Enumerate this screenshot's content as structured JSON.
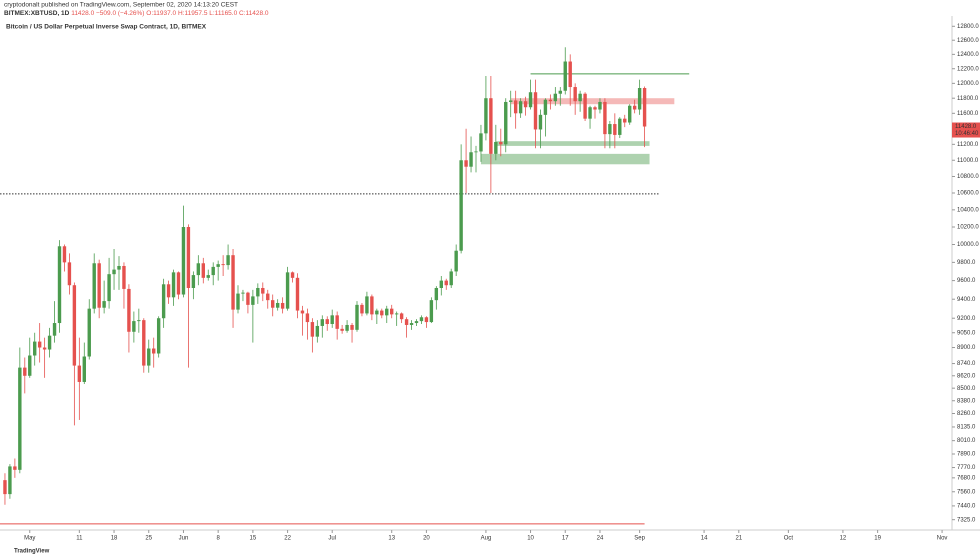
{
  "header": {
    "publisher": "cryptodonalt published on TradingView.com, September 02, 2020 14:13:20 CEST",
    "symbol": "BITMEX:XBTUSD, 1D",
    "last": "11428.0",
    "change": "−509.0 (−4.26%)",
    "ohlc": "O:11937.0 H:11957.5 L:11165.0 C:11428.0"
  },
  "footer": {
    "logo": "TradingView"
  },
  "chart_data": {
    "type": "candlestick",
    "title": "Bitcoin / US Dollar Perpetual Inverse Swap Contract, 1D, BITMEX",
    "log_scale": true,
    "up_color": "#4b9b4e",
    "down_color": "#e5514e",
    "last_price_label": "11428.0",
    "countdown": "10:46:40",
    "xlim": [
      "2020-04-25",
      "2020-11-03"
    ],
    "xticks": [
      {
        "value": "2020-05-01",
        "label": "May"
      },
      {
        "value": "2020-05-11",
        "label": "11"
      },
      {
        "value": "2020-05-18",
        "label": "18"
      },
      {
        "value": "2020-05-25",
        "label": "25"
      },
      {
        "value": "2020-06-01",
        "label": "Jun"
      },
      {
        "value": "2020-06-08",
        "label": "8"
      },
      {
        "value": "2020-06-15",
        "label": "15"
      },
      {
        "value": "2020-06-22",
        "label": "22"
      },
      {
        "value": "2020-07-01",
        "label": "Jul"
      },
      {
        "value": "2020-07-13",
        "label": "13"
      },
      {
        "value": "2020-07-20",
        "label": "20"
      },
      {
        "value": "2020-08-01",
        "label": "Aug"
      },
      {
        "value": "2020-08-10",
        "label": "10"
      },
      {
        "value": "2020-08-17",
        "label": "17"
      },
      {
        "value": "2020-08-24",
        "label": "24"
      },
      {
        "value": "2020-09-01",
        "label": "Sep"
      },
      {
        "value": "2020-09-14",
        "label": "14"
      },
      {
        "value": "2020-09-21",
        "label": "21"
      },
      {
        "value": "2020-10-01",
        "label": "Oct"
      },
      {
        "value": "2020-10-12",
        "label": "12"
      },
      {
        "value": "2020-10-19",
        "label": "19"
      },
      {
        "value": "2020-11-01",
        "label": "Nov"
      }
    ],
    "ylim": [
      7240,
      12950
    ],
    "yticks": [
      {
        "value": 7325,
        "label": "7325.0"
      },
      {
        "value": 7440,
        "label": "7440.0"
      },
      {
        "value": 7560,
        "label": "7560.0"
      },
      {
        "value": 7680,
        "label": "7680.0"
      },
      {
        "value": 7770,
        "label": "7770.0"
      },
      {
        "value": 7890,
        "label": "7890.0"
      },
      {
        "value": 8010,
        "label": "8010.0"
      },
      {
        "value": 8135,
        "label": "8135.0"
      },
      {
        "value": 8260,
        "label": "8260.0"
      },
      {
        "value": 8380,
        "label": "8380.0"
      },
      {
        "value": 8500,
        "label": "8500.0"
      },
      {
        "value": 8620,
        "label": "8620.0"
      },
      {
        "value": 8740,
        "label": "8740.0"
      },
      {
        "value": 8900,
        "label": "8900.0"
      },
      {
        "value": 9050,
        "label": "9050.0"
      },
      {
        "value": 9200,
        "label": "9200.0"
      },
      {
        "value": 9400,
        "label": "9400.0"
      },
      {
        "value": 9600,
        "label": "9600.0"
      },
      {
        "value": 9800,
        "label": "9800.0"
      },
      {
        "value": 10000,
        "label": "10000.0"
      },
      {
        "value": 10200,
        "label": "10200.0"
      },
      {
        "value": 10400,
        "label": "10400.0"
      },
      {
        "value": 10600,
        "label": "10600.0"
      },
      {
        "value": 10800,
        "label": "10800.0"
      },
      {
        "value": 11000,
        "label": "11000.0"
      },
      {
        "value": 11200,
        "label": "11200.0"
      },
      {
        "value": 11400,
        "label": "11400.0"
      },
      {
        "value": 11600,
        "label": "11600.0"
      },
      {
        "value": 11800,
        "label": "11800.0"
      },
      {
        "value": 12000,
        "label": "12000.0"
      },
      {
        "value": 12200,
        "label": "12200.0"
      },
      {
        "value": 12400,
        "label": "12400.0"
      },
      {
        "value": 12600,
        "label": "12600.0"
      },
      {
        "value": 12800,
        "label": "12800.0"
      }
    ],
    "start": "2020-04-26",
    "open": [
      7660,
      7540,
      7780,
      7750,
      8700,
      8620,
      8820,
      8960,
      8900,
      8880,
      9020,
      9150,
      9980,
      9800,
      9550,
      8720,
      8560,
      8810,
      9300,
      9790,
      9310,
      9380,
      9670,
      9720,
      9760,
      9510,
      9060,
      9170,
      9180,
      8720,
      8890,
      8840,
      9200,
      9560,
      9420,
      9690,
      9450,
      10200,
      9520,
      9660,
      9790,
      9630,
      9660,
      9750,
      9780,
      9770,
      9880,
      9290,
      9460,
      9470,
      9340,
      9430,
      9520,
      9460,
      9390,
      9310,
      9360,
      9300,
      9690,
      9630,
      9280,
      9250,
      9160,
      9010,
      9120,
      9190,
      9140,
      9230,
      9090,
      9070,
      9130,
      9080,
      9340,
      9250,
      9430,
      9240,
      9280,
      9230,
      9300,
      9240,
      9250,
      9190,
      9130,
      9150,
      9170,
      9210,
      9160,
      9390,
      9520,
      9600,
      9550,
      9700,
      9930,
      11000,
      10920,
      11100,
      11110,
      11340,
      11800,
      11080,
      11230,
      11200,
      11750,
      11770,
      11600,
      11760,
      11680,
      11880,
      11390,
      11580,
      11780,
      11760,
      11860,
      11900,
      12300,
      11950,
      11760,
      11860,
      11530,
      11680,
      11650,
      11750,
      11330,
      11460,
      11320,
      11530,
      11480,
      11700,
      11650,
      11937
    ],
    "high": [
      7720,
      7800,
      7850,
      8900,
      8800,
      9000,
      9050,
      9150,
      9000,
      9100,
      9380,
      10050,
      10000,
      9900,
      9580,
      9000,
      8950,
      9400,
      9900,
      9830,
      9600,
      9850,
      9950,
      9870,
      9800,
      9560,
      9270,
      9300,
      9200,
      8980,
      9000,
      9220,
      9620,
      9600,
      9720,
      9700,
      10450,
      10230,
      9700,
      9880,
      9850,
      9720,
      9800,
      9820,
      9880,
      10000,
      9950,
      9550,
      9500,
      9480,
      9500,
      9570,
      9580,
      9500,
      9450,
      9400,
      9420,
      9750,
      9700,
      9680,
      9330,
      9300,
      9200,
      9180,
      9230,
      9220,
      9290,
      9270,
      9130,
      9180,
      9150,
      9380,
      9360,
      9480,
      9450,
      9300,
      9300,
      9330,
      9340,
      9270,
      9260,
      9210,
      9180,
      9190,
      9230,
      9220,
      9420,
      9540,
      9650,
      9620,
      9730,
      10000,
      11200,
      11400,
      11300,
      11180,
      11450,
      12100,
      12100,
      11450,
      11400,
      11800,
      11900,
      11900,
      11800,
      11820,
      12050,
      12050,
      11650,
      11800,
      11850,
      11950,
      11950,
      12500,
      12400,
      12000,
      11900,
      11880,
      11700,
      11700,
      11800,
      11800,
      11500,
      11600,
      11550,
      11580,
      11720,
      11780,
      12050,
      11957.5
    ],
    "low": [
      7450,
      7500,
      7680,
      7720,
      8450,
      8600,
      8720,
      8750,
      8600,
      8800,
      8950,
      9050,
      9700,
      9450,
      8150,
      8200,
      8540,
      8780,
      9250,
      9200,
      9250,
      9300,
      9500,
      9500,
      9300,
      8850,
      8950,
      9050,
      8650,
      8650,
      8700,
      8800,
      9100,
      9350,
      9330,
      9400,
      9420,
      8700,
      9400,
      9550,
      9570,
      9600,
      9550,
      9600,
      9650,
      9720,
      9100,
      9250,
      9380,
      9250,
      8950,
      9350,
      9380,
      9300,
      9220,
      9280,
      9250,
      9280,
      9580,
      9200,
      9020,
      8980,
      8850,
      8950,
      9000,
      9070,
      9100,
      8980,
      9040,
      9050,
      8950,
      9060,
      9220,
      9230,
      9180,
      9140,
      9200,
      9150,
      9200,
      9120,
      9150,
      9000,
      9080,
      9120,
      9140,
      9100,
      9150,
      9290,
      9440,
      9500,
      9520,
      9650,
      9900,
      10600,
      10850,
      10850,
      10980,
      11250,
      10600,
      11000,
      11050,
      11100,
      11550,
      11400,
      11540,
      11570,
      11650,
      11150,
      11150,
      11300,
      11650,
      11700,
      11700,
      11850,
      11700,
      11580,
      11620,
      11500,
      11400,
      11530,
      11600,
      11150,
      11150,
      11150,
      11280,
      11420,
      11450,
      11600,
      11580,
      11165
    ],
    "close": [
      7540,
      7780,
      7750,
      8700,
      8620,
      8820,
      8960,
      8900,
      8880,
      9020,
      9150,
      9980,
      9800,
      9550,
      8720,
      8560,
      8810,
      9300,
      9790,
      9310,
      9380,
      9670,
      9720,
      9760,
      9510,
      9060,
      9170,
      9180,
      8720,
      8890,
      8840,
      9200,
      9560,
      9420,
      9690,
      9450,
      10200,
      9520,
      9660,
      9790,
      9630,
      9660,
      9750,
      9780,
      9770,
      9880,
      9290,
      9460,
      9470,
      9340,
      9430,
      9520,
      9460,
      9390,
      9310,
      9360,
      9300,
      9690,
      9630,
      9280,
      9250,
      9160,
      9010,
      9120,
      9190,
      9140,
      9230,
      9090,
      9070,
      9130,
      9080,
      9340,
      9250,
      9430,
      9240,
      9280,
      9230,
      9300,
      9240,
      9250,
      9190,
      9130,
      9150,
      9170,
      9210,
      9160,
      9390,
      9520,
      9600,
      9550,
      9700,
      9930,
      11000,
      10920,
      11100,
      11110,
      11340,
      11800,
      11080,
      11230,
      11200,
      11750,
      11770,
      11600,
      11760,
      11680,
      11880,
      11390,
      11580,
      11780,
      11760,
      11860,
      11900,
      12300,
      11950,
      11760,
      11860,
      11530,
      11680,
      11650,
      11750,
      11330,
      11460,
      11320,
      11530,
      11480,
      11700,
      11650,
      11937,
      11428
    ],
    "levels": [
      {
        "value": 10590,
        "from": "2020-04-25",
        "to": "2020-09-05",
        "color": "#333333",
        "style": "dotted"
      },
      {
        "value": 12130,
        "from": "2020-08-10",
        "to": "2020-09-11",
        "color": "#4b9b4e",
        "style": "solid"
      },
      {
        "value": 7290,
        "from": "2020-04-25",
        "to": "2020-09-02",
        "color": "#e5514e",
        "style": "solid"
      }
    ],
    "zones": [
      {
        "low": 11720,
        "high": 11800,
        "from": "2020-08-06",
        "to": "2020-09-08",
        "color": "rgba(229,81,78,0.4)"
      },
      {
        "low": 11180,
        "high": 11240,
        "from": "2020-08-03",
        "to": "2020-09-03",
        "color": "rgba(75,155,78,0.45)"
      },
      {
        "low": 10950,
        "high": 11080,
        "from": "2020-07-31",
        "to": "2020-09-03",
        "color": "rgba(75,155,78,0.45)"
      }
    ]
  }
}
